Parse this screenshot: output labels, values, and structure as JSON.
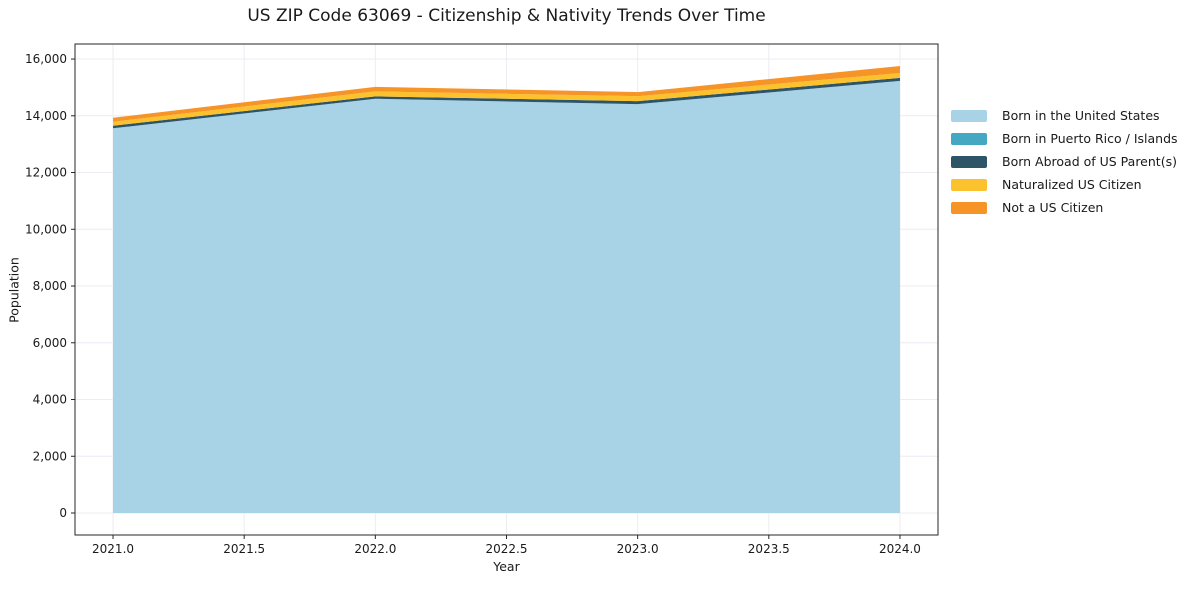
{
  "title": "US ZIP Code 63069 - Citizenship & Nativity Trends Over Time",
  "chart_data": {
    "type": "area",
    "stacked": true,
    "title": "US ZIP Code 63069 - Citizenship & Nativity Trends Over Time",
    "xlabel": "Year",
    "ylabel": "Population",
    "x": [
      2021,
      2022,
      2023,
      2024
    ],
    "series": [
      {
        "name": "Born in the United States",
        "color": "#a8d2e6",
        "values": [
          13560,
          14600,
          14410,
          15230
        ]
      },
      {
        "name": "Born in Puerto Rico / Islands",
        "color": "#45a8c2",
        "values": [
          0,
          0,
          0,
          0
        ]
      },
      {
        "name": "Born Abroad of US Parent(s)",
        "color": "#2e5468",
        "values": [
          90,
          85,
          105,
          105
        ]
      },
      {
        "name": "Naturalized US Citizen",
        "color": "#fcc22d",
        "values": [
          140,
          175,
          175,
          175
        ]
      },
      {
        "name": "Not a US Citizen",
        "color": "#f79428",
        "values": [
          140,
          160,
          145,
          245
        ]
      }
    ],
    "totals": [
      13930,
      15020,
      14835,
      15755
    ],
    "x_ticks": [
      2021.0,
      2021.5,
      2022.0,
      2022.5,
      2023.0,
      2023.5,
      2024.0
    ],
    "y_ticks": [
      0,
      2000,
      4000,
      6000,
      8000,
      10000,
      12000,
      14000,
      16000
    ],
    "x_range": [
      2020.855,
      2024.145
    ],
    "y_range": [
      -775,
      16530
    ],
    "grid": true,
    "grid_color": "#ececf3",
    "frame_color": "#262626",
    "tick_label_color": "#1a1a1a",
    "legend_position": "right-outside"
  }
}
